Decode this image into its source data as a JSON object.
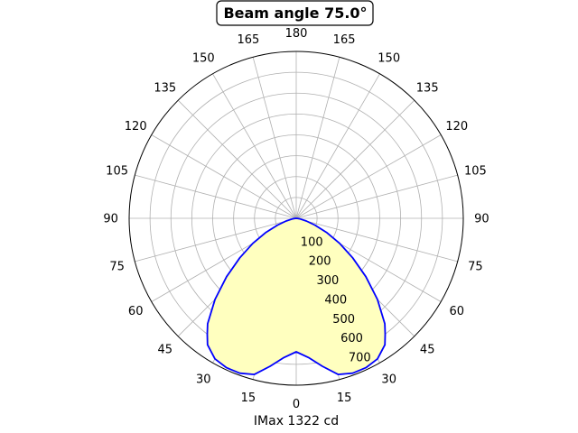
{
  "chart_data": {
    "type": "polar",
    "title": "Beam angle 75.0°",
    "xlabel": "IMax 1322 cd",
    "theta_zero": "bottom",
    "theta_tick_labels": [
      "0",
      "15",
      "30",
      "45",
      "60",
      "75",
      "90",
      "105",
      "120",
      "135",
      "150",
      "165",
      "180",
      "165",
      "150",
      "135",
      "120",
      "105",
      "90",
      "75",
      "60",
      "45",
      "30",
      "15"
    ],
    "r_tick_labels": [
      "100",
      "200",
      "300",
      "400",
      "500",
      "600",
      "700"
    ],
    "rlim": [
      0,
      800
    ],
    "grid": true,
    "series": [
      {
        "color": "#0000ff",
        "fill": "#ffffbf",
        "theta_deg": [
          0,
          5,
          10,
          15,
          20,
          25,
          30,
          35,
          37.5,
          40,
          45,
          50,
          55,
          60,
          65,
          70,
          75,
          80,
          85,
          90
        ],
        "r": [
          640,
          670,
          720,
          775,
          790,
          790,
          778,
          740,
          700,
          660,
          550,
          435,
          330,
          240,
          160,
          95,
          50,
          20,
          5,
          0
        ]
      }
    ]
  }
}
